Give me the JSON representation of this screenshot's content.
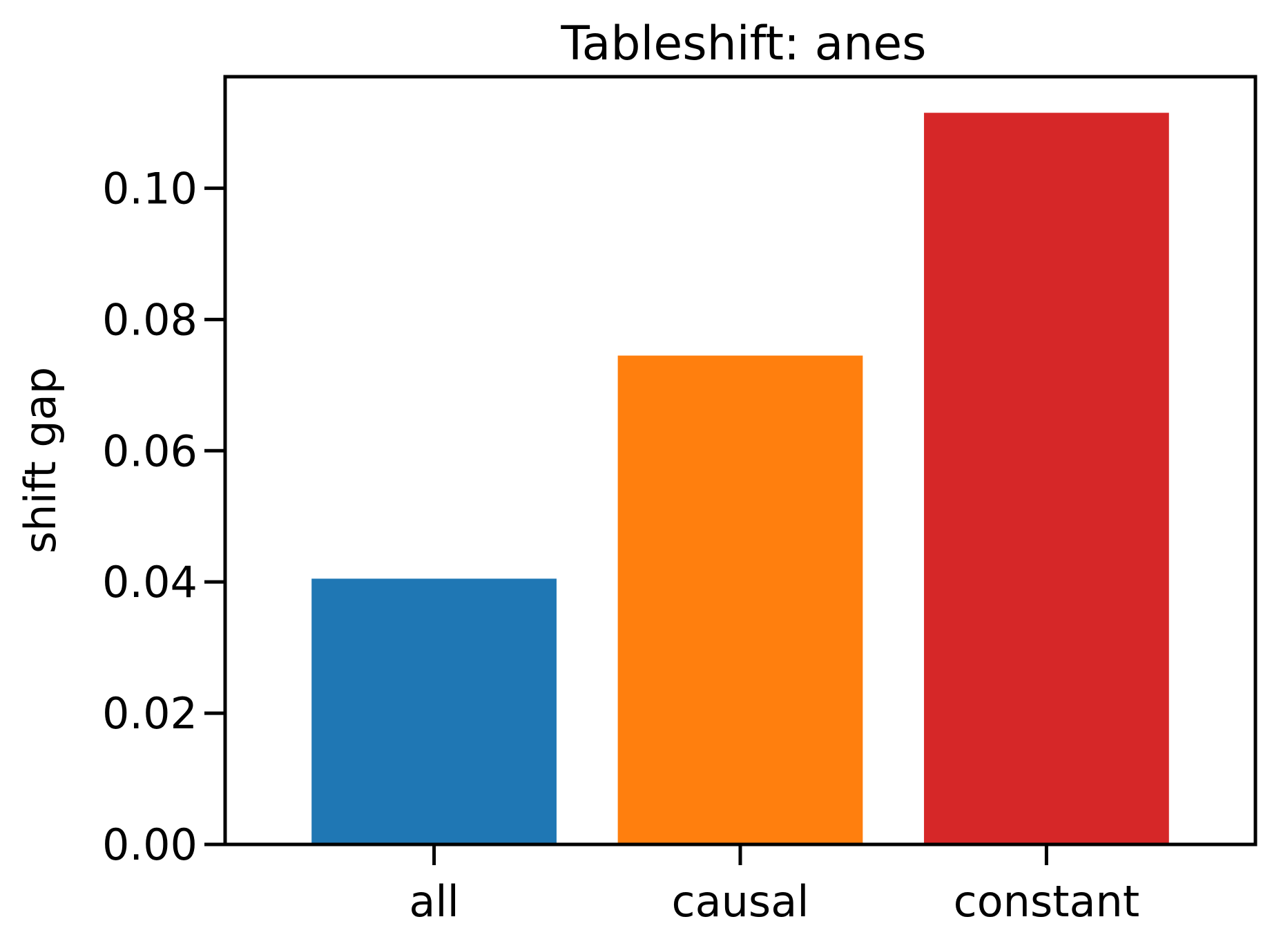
{
  "chart_data": {
    "type": "bar",
    "title": "Tableshift: anes",
    "xlabel": "",
    "ylabel": "shift gap",
    "categories": [
      "all",
      "causal",
      "constant"
    ],
    "values": [
      0.0405,
      0.0745,
      0.1115
    ],
    "colors": [
      "#1f77b4",
      "#ff7f0e",
      "#d62728"
    ],
    "ylim": [
      0,
      0.117
    ],
    "yticks": [
      0.0,
      0.02,
      0.04,
      0.06,
      0.08,
      0.1
    ],
    "ytick_labels": [
      "0.00",
      "0.02",
      "0.04",
      "0.06",
      "0.08",
      "0.10"
    ],
    "grid": false,
    "legend": "none"
  }
}
